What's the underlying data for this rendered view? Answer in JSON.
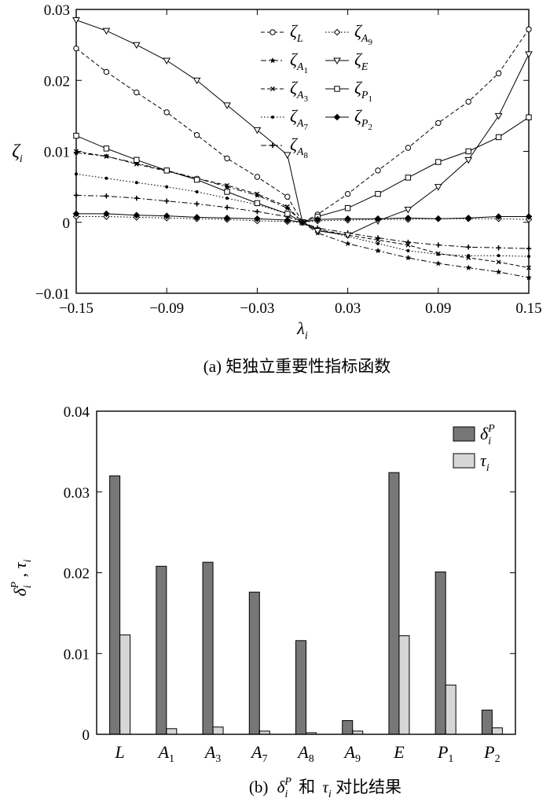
{
  "figure": {
    "caption_a": "(a) 矩独立重要性指标函数",
    "caption_b_pre": "(b)",
    "caption_b_mid": "和",
    "caption_b_post": "对比结果"
  },
  "chart_data": [
    {
      "type": "line",
      "caption": "(a) 矩独立重要性指标函数",
      "xlabel": "λi",
      "ylabel": "ζi",
      "xlim": [
        -0.15,
        0.15
      ],
      "ylim": [
        -0.01,
        0.03
      ],
      "xticks": [
        "-0.15",
        "-0.09",
        "-0.03",
        "0.03",
        "0.09",
        "0.15"
      ],
      "yticks": [
        "-0.01",
        "0",
        "0.01",
        "0.02",
        "0.03"
      ],
      "x": [
        -0.15,
        -0.13,
        -0.11,
        -0.09,
        -0.07,
        -0.05,
        -0.03,
        -0.01,
        0.0,
        0.01,
        0.03,
        0.05,
        0.07,
        0.09,
        0.11,
        0.13,
        0.15
      ],
      "legend": "top-center, two columns",
      "series": [
        {
          "name": "ζL",
          "base": "ζ",
          "sub": "L",
          "subsub": "",
          "marker": "circle-open",
          "dash": "dash",
          "values": [
            0.0245,
            0.0212,
            0.0183,
            0.0155,
            0.0123,
            0.009,
            0.0064,
            0.0036,
            0.0,
            0.0011,
            0.004,
            0.0073,
            0.0105,
            0.014,
            0.017,
            0.021,
            0.0272
          ]
        },
        {
          "name": "ζA1",
          "base": "ζ",
          "sub": "A",
          "subsub": "1",
          "marker": "star",
          "dash": "dashdot",
          "values": [
            0.0098,
            0.0093,
            0.0083,
            0.0073,
            0.0062,
            0.005,
            0.0038,
            0.002,
            0.0,
            -0.0015,
            -0.003,
            -0.004,
            -0.005,
            -0.0058,
            -0.0064,
            -0.007,
            -0.0078
          ]
        },
        {
          "name": "ζA3",
          "base": "ζ",
          "sub": "A",
          "subsub": "3",
          "marker": "x-small",
          "dash": "dash",
          "values": [
            0.01,
            0.0093,
            0.0082,
            0.0072,
            0.0062,
            0.0052,
            0.004,
            0.0022,
            0.0,
            -0.001,
            -0.0018,
            -0.0025,
            -0.0032,
            -0.0044,
            -0.005,
            -0.0056,
            -0.0064
          ]
        },
        {
          "name": "ζA7",
          "base": "ζ",
          "sub": "A",
          "subsub": "7",
          "marker": "dot",
          "dash": "dot",
          "values": [
            0.0068,
            0.0062,
            0.0056,
            0.005,
            0.0043,
            0.0034,
            0.0025,
            0.0012,
            0.0,
            -0.001,
            -0.002,
            -0.003,
            -0.004,
            -0.0045,
            -0.0047,
            -0.0047,
            -0.0048
          ]
        },
        {
          "name": "ζA8",
          "base": "ζ",
          "sub": "A",
          "subsub": "8",
          "marker": "plus",
          "dash": "dashdot",
          "values": [
            0.0038,
            0.0037,
            0.0034,
            0.003,
            0.0026,
            0.0021,
            0.0015,
            0.0008,
            0.0,
            -0.0008,
            -0.0015,
            -0.0022,
            -0.0028,
            -0.0032,
            -0.0035,
            -0.0036,
            -0.0037
          ]
        },
        {
          "name": "ζA9",
          "base": "ζ",
          "sub": "A",
          "subsub": "9",
          "marker": "diamond-open",
          "dash": "dot",
          "values": [
            0.0008,
            0.0008,
            0.0007,
            0.0006,
            0.0005,
            0.0004,
            0.0002,
            0.0001,
            0.0,
            0.0002,
            0.0003,
            0.0004,
            0.0004,
            0.0005,
            0.0005,
            0.0005,
            0.0004
          ]
        },
        {
          "name": "ζE",
          "base": "ζ",
          "sub": "E",
          "subsub": "",
          "marker": "triangle-down-open",
          "dash": "solid",
          "values": [
            0.0285,
            0.027,
            0.025,
            0.0228,
            0.02,
            0.0165,
            0.013,
            0.0095,
            0.0,
            -0.0012,
            -0.0018,
            0.0002,
            0.0018,
            0.005,
            0.0088,
            0.015,
            0.0237
          ]
        },
        {
          "name": "ζP1",
          "base": "ζ",
          "sub": "P",
          "subsub": "1",
          "marker": "square-open",
          "dash": "solid",
          "values": [
            0.0122,
            0.0104,
            0.0088,
            0.0073,
            0.006,
            0.0043,
            0.0027,
            0.0012,
            0.0,
            0.0008,
            0.002,
            0.004,
            0.0063,
            0.0085,
            0.01,
            0.012,
            0.0148
          ]
        },
        {
          "name": "ζP2",
          "base": "ζ",
          "sub": "P",
          "subsub": "2",
          "marker": "diamond-filled",
          "dash": "solid",
          "values": [
            0.0012,
            0.0012,
            0.001,
            0.0009,
            0.0007,
            0.0006,
            0.0005,
            0.0003,
            0.0,
            0.0004,
            0.0005,
            0.0005,
            0.0006,
            0.0005,
            0.0006,
            0.0008,
            0.0008
          ]
        }
      ]
    },
    {
      "type": "bar",
      "caption": "(b) δiP 和 τi 对比结果",
      "ylabel": "δiP , τi",
      "ylim": [
        0,
        0.04
      ],
      "yticks": [
        "0",
        "0.01",
        "0.02",
        "0.03",
        "0.04"
      ],
      "legend": "top-right",
      "categories": [
        {
          "base": "L",
          "sub": ""
        },
        {
          "base": "A",
          "sub": "1"
        },
        {
          "base": "A",
          "sub": "3"
        },
        {
          "base": "A",
          "sub": "7"
        },
        {
          "base": "A",
          "sub": "8"
        },
        {
          "base": "A",
          "sub": "9"
        },
        {
          "base": "E",
          "sub": ""
        },
        {
          "base": "P",
          "sub": "1"
        },
        {
          "base": "P",
          "sub": "2"
        }
      ],
      "series": [
        {
          "name": "δiP",
          "base": "δ",
          "sub": "i",
          "sup": "P",
          "color": "#777777",
          "values": [
            0.032,
            0.0208,
            0.0213,
            0.0176,
            0.0116,
            0.0017,
            0.0324,
            0.0201,
            0.003
          ]
        },
        {
          "name": "τi",
          "base": "τ",
          "sub": "i",
          "sup": "",
          "color": "#d6d6d6",
          "values": [
            0.0123,
            0.0007,
            0.0009,
            0.0004,
            0.0002,
            0.0004,
            0.0122,
            0.0061,
            0.0008
          ]
        }
      ]
    }
  ]
}
